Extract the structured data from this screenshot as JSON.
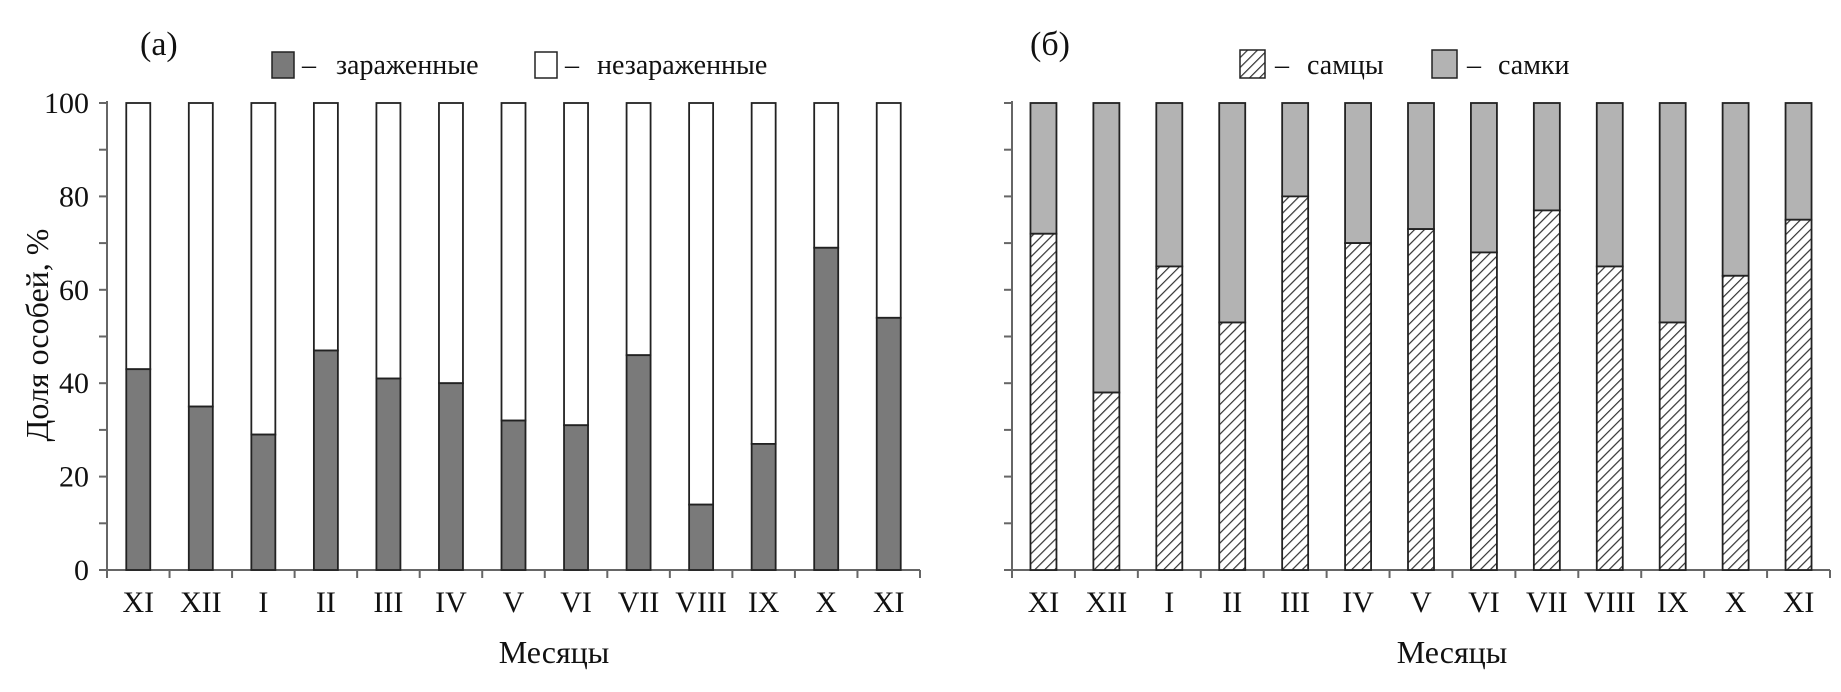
{
  "colors": {
    "infected": "#7a7a7a",
    "uninfected": "#ffffff",
    "females": "#b3b3b3",
    "males_hatch": "#333333",
    "axis": "#666666",
    "outline": "#222222"
  },
  "chart_data": [
    {
      "type": "bar",
      "stacked": true,
      "panel_label": "(a)",
      "categories": [
        "XI",
        "XII",
        "I",
        "II",
        "III",
        "IV",
        "V",
        "VI",
        "VII",
        "VIII",
        "IX",
        "X",
        "XI"
      ],
      "series": [
        {
          "name": "зараженные",
          "values": [
            43,
            35,
            29,
            47,
            41,
            40,
            32,
            31,
            46,
            14,
            27,
            69,
            54
          ]
        },
        {
          "name": "незараженные",
          "values": [
            57,
            65,
            71,
            53,
            59,
            60,
            68,
            69,
            54,
            86,
            73,
            31,
            46
          ]
        }
      ],
      "legend_dash": "–",
      "xlabel": "Месяцы",
      "ylabel": "Доля особей, %",
      "ylim": [
        0,
        100
      ],
      "yticks": [
        0,
        20,
        40,
        60,
        80,
        100
      ],
      "legend_position": "top"
    },
    {
      "type": "bar",
      "stacked": true,
      "panel_label": "(б)",
      "categories": [
        "XI",
        "XII",
        "I",
        "II",
        "III",
        "IV",
        "V",
        "VI",
        "VII",
        "VIII",
        "IX",
        "X",
        "XI"
      ],
      "series": [
        {
          "name": "самцы",
          "values": [
            72,
            38,
            65,
            53,
            80,
            70,
            73,
            68,
            77,
            65,
            53,
            63,
            75
          ]
        },
        {
          "name": "самки",
          "values": [
            28,
            62,
            35,
            47,
            20,
            30,
            27,
            32,
            23,
            35,
            47,
            37,
            25
          ]
        }
      ],
      "legend_dash": "–",
      "xlabel": "Месяцы",
      "ylabel": "",
      "ylim": [
        0,
        100
      ],
      "legend_position": "top"
    }
  ]
}
